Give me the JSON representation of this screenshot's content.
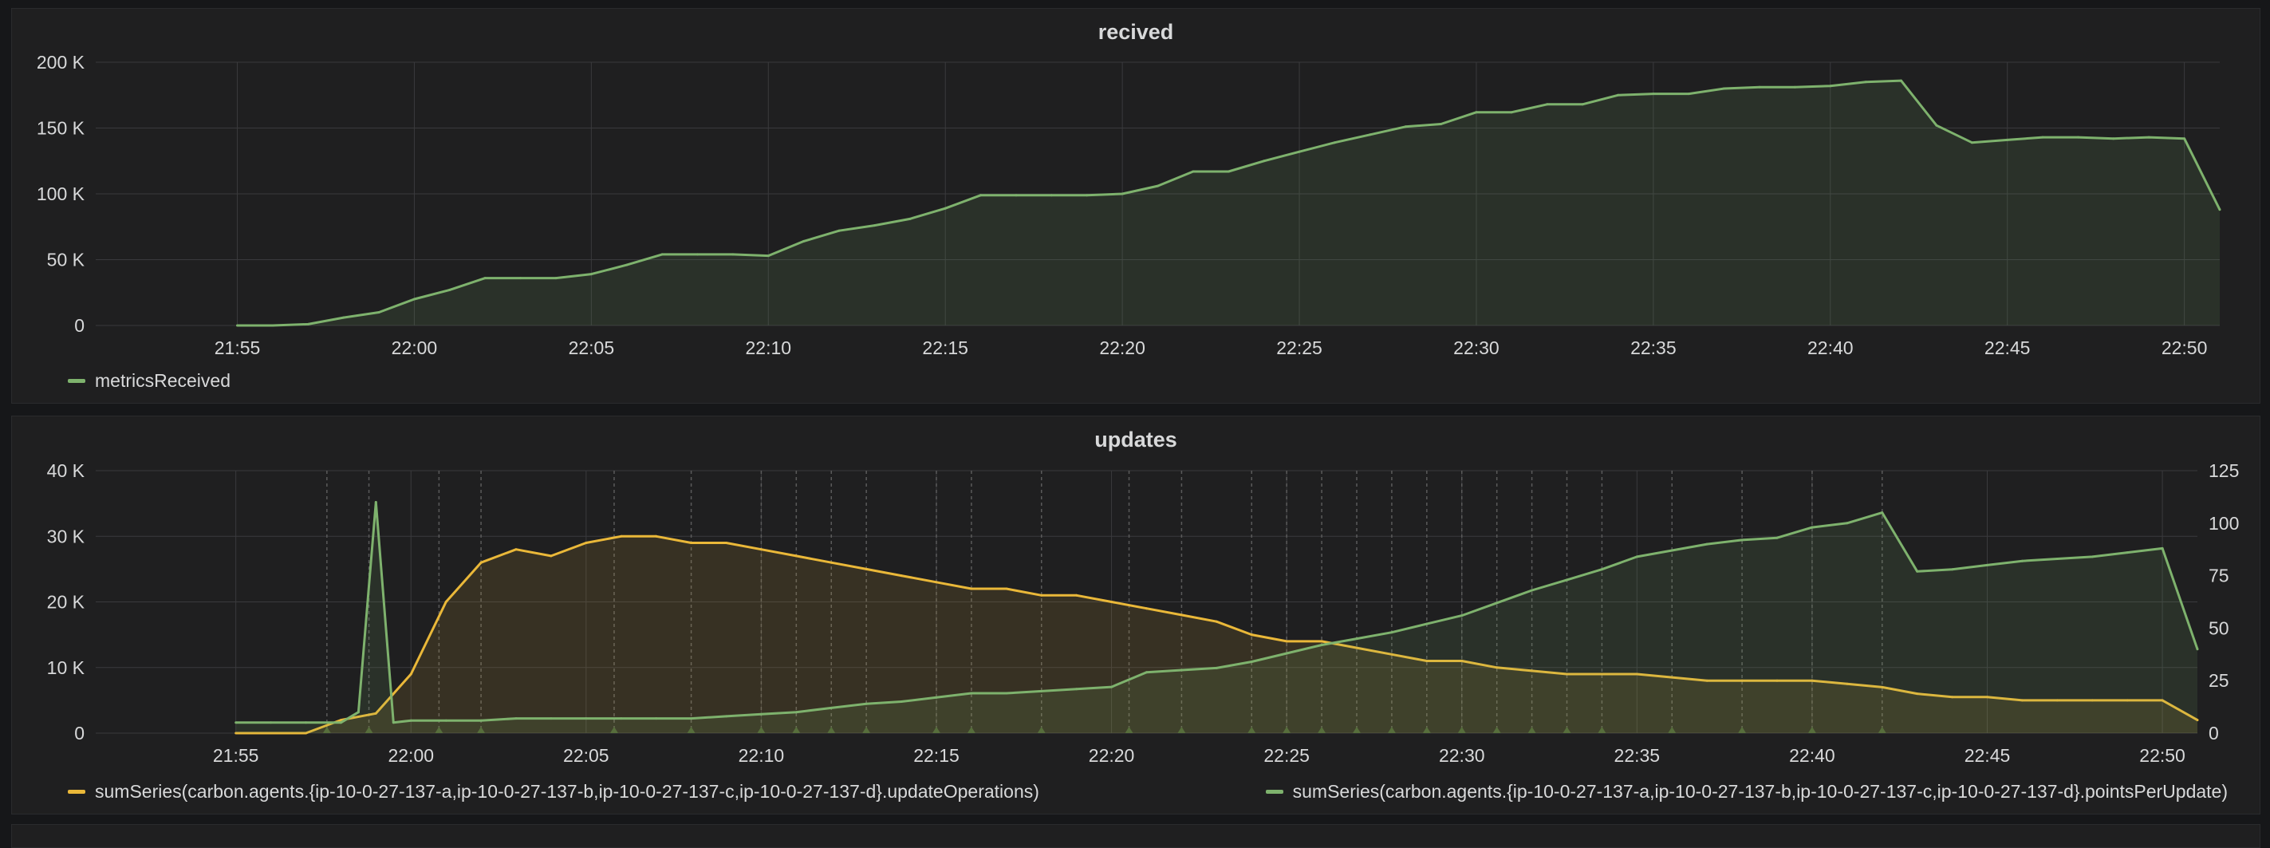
{
  "colors": {
    "green": "#7eb26d",
    "yellow": "#eab839",
    "grid": "#3a3a3d",
    "annotation": "#5a5a5a"
  },
  "x_ticks": [
    "21:55",
    "22:00",
    "22:05",
    "22:10",
    "22:15",
    "22:20",
    "22:25",
    "22:30",
    "22:35",
    "22:40",
    "22:45",
    "22:50"
  ],
  "chart_data": [
    {
      "type": "line",
      "title": "recived",
      "xlabel": "",
      "ylabel": "",
      "x_unit": "minutes",
      "xlim": [
        "21:51",
        "22:51"
      ],
      "ylim": [
        0,
        200000
      ],
      "y_ticks": [
        "0",
        "50 K",
        "100 K",
        "150 K",
        "200 K"
      ],
      "y_tick_values": [
        0,
        50000,
        100000,
        150000,
        200000
      ],
      "grid": true,
      "legend_position": "bottom-left",
      "series": [
        {
          "name": "metricsReceived",
          "color": "#7eb26d",
          "fill": true,
          "x": [
            "21:55",
            "21:56",
            "21:57",
            "21:58",
            "21:59",
            "22:00",
            "22:01",
            "22:02",
            "22:03",
            "22:04",
            "22:05",
            "22:06",
            "22:07",
            "22:08",
            "22:09",
            "22:10",
            "22:11",
            "22:12",
            "22:13",
            "22:14",
            "22:15",
            "22:16",
            "22:17",
            "22:18",
            "22:19",
            "22:20",
            "22:21",
            "22:22",
            "22:23",
            "22:24",
            "22:25",
            "22:26",
            "22:27",
            "22:28",
            "22:29",
            "22:30",
            "22:31",
            "22:32",
            "22:33",
            "22:34",
            "22:35",
            "22:36",
            "22:37",
            "22:38",
            "22:39",
            "22:40",
            "22:41",
            "22:42",
            "22:43",
            "22:44",
            "22:45",
            "22:46",
            "22:47",
            "22:48",
            "22:49",
            "22:50",
            "22:51"
          ],
          "values": [
            0,
            0,
            1000,
            6000,
            10000,
            20000,
            27000,
            36000,
            36000,
            36000,
            39000,
            46000,
            54000,
            54000,
            54000,
            53000,
            64000,
            72000,
            76000,
            81000,
            89000,
            99000,
            99000,
            99000,
            99000,
            100000,
            106000,
            117000,
            117000,
            125000,
            132000,
            139000,
            145000,
            151000,
            153000,
            162000,
            162000,
            168000,
            168000,
            175000,
            176000,
            176000,
            180000,
            181000,
            181000,
            182000,
            185000,
            186000,
            152000,
            139000,
            141000,
            143000,
            143000,
            142000,
            143000,
            142000,
            88000
          ]
        }
      ]
    },
    {
      "type": "line",
      "title": "updates",
      "xlabel": "",
      "ylabel": "",
      "x_unit": "minutes",
      "xlim": [
        "21:51",
        "22:51"
      ],
      "ylim": [
        0,
        40000
      ],
      "y_ticks": [
        "0",
        "10 K",
        "20 K",
        "30 K",
        "40 K"
      ],
      "y_tick_values": [
        0,
        10000,
        20000,
        30000,
        40000
      ],
      "ylim_right": [
        0,
        125
      ],
      "y_ticks_right": [
        "0",
        "25",
        "50",
        "75",
        "100",
        "125"
      ],
      "y_tick_values_right": [
        0,
        25,
        50,
        75,
        100,
        125
      ],
      "grid": true,
      "legend_position": "bottom",
      "series": [
        {
          "name": "sumSeries(carbon.agents.{ip-10-0-27-137-a,ip-10-0-27-137-b,ip-10-0-27-137-c,ip-10-0-27-137-d}.updateOperations)",
          "color": "#eab839",
          "axis": "left",
          "fill": true,
          "x": [
            "21:55",
            "21:56",
            "21:57",
            "21:58",
            "21:59",
            "22:00",
            "22:01",
            "22:02",
            "22:03",
            "22:04",
            "22:05",
            "22:06",
            "22:07",
            "22:08",
            "22:09",
            "22:10",
            "22:11",
            "22:12",
            "22:13",
            "22:14",
            "22:15",
            "22:16",
            "22:17",
            "22:18",
            "22:19",
            "22:20",
            "22:21",
            "22:22",
            "22:23",
            "22:24",
            "22:25",
            "22:26",
            "22:27",
            "22:28",
            "22:29",
            "22:30",
            "22:31",
            "22:32",
            "22:33",
            "22:34",
            "22:35",
            "22:36",
            "22:37",
            "22:38",
            "22:39",
            "22:40",
            "22:41",
            "22:42",
            "22:43",
            "22:44",
            "22:45",
            "22:46",
            "22:47",
            "22:48",
            "22:49",
            "22:50",
            "22:51"
          ],
          "values": [
            0,
            0,
            0,
            2000,
            3000,
            9000,
            20000,
            26000,
            28000,
            27000,
            29000,
            30000,
            30000,
            29000,
            29000,
            28000,
            27000,
            26000,
            25000,
            24000,
            23000,
            22000,
            22000,
            21000,
            21000,
            20000,
            19000,
            18000,
            17000,
            15000,
            14000,
            14000,
            13000,
            12000,
            11000,
            11000,
            10000,
            9500,
            9000,
            9000,
            9000,
            8500,
            8000,
            8000,
            8000,
            8000,
            7500,
            7000,
            6000,
            5500,
            5500,
            5000,
            5000,
            5000,
            5000,
            5000,
            2000
          ]
        },
        {
          "name": "sumSeries(carbon.agents.{ip-10-0-27-137-a,ip-10-0-27-137-b,ip-10-0-27-137-c,ip-10-0-27-137-d}.pointsPerUpdate)",
          "color": "#7eb26d",
          "axis": "right",
          "fill": true,
          "x": [
            "21:55",
            "21:56",
            "21:57",
            "21:58",
            "21:58.5",
            "21:59",
            "21:59.5",
            "22:00",
            "22:01",
            "22:02",
            "22:03",
            "22:04",
            "22:05",
            "22:06",
            "22:07",
            "22:08",
            "22:09",
            "22:10",
            "22:11",
            "22:12",
            "22:13",
            "22:14",
            "22:15",
            "22:16",
            "22:17",
            "22:18",
            "22:19",
            "22:20",
            "22:21",
            "22:22",
            "22:23",
            "22:24",
            "22:25",
            "22:26",
            "22:27",
            "22:28",
            "22:29",
            "22:30",
            "22:31",
            "22:32",
            "22:33",
            "22:34",
            "22:35",
            "22:36",
            "22:37",
            "22:38",
            "22:39",
            "22:40",
            "22:41",
            "22:42",
            "22:43",
            "22:44",
            "22:45",
            "22:46",
            "22:47",
            "22:48",
            "22:49",
            "22:50",
            "22:51"
          ],
          "values": [
            5,
            5,
            5,
            5,
            10,
            110,
            5,
            6,
            6,
            6,
            7,
            7,
            7,
            7,
            7,
            7,
            8,
            9,
            10,
            12,
            14,
            15,
            17,
            19,
            19,
            20,
            21,
            22,
            29,
            30,
            31,
            34,
            38,
            42,
            45,
            48,
            52,
            56,
            62,
            68,
            73,
            78,
            84,
            87,
            90,
            92,
            93,
            98,
            100,
            105,
            77,
            78,
            80,
            82,
            83,
            84,
            86,
            88,
            40
          ]
        }
      ],
      "annotations_x": [
        "21:57.6",
        "21:58.8",
        "22:00.8",
        "22:02",
        "22:05.8",
        "22:08",
        "22:10",
        "22:11",
        "22:12",
        "22:13",
        "22:15",
        "22:16",
        "22:18",
        "22:20.5",
        "22:22",
        "22:24",
        "22:25",
        "22:26",
        "22:27",
        "22:28",
        "22:29",
        "22:30",
        "22:31",
        "22:32",
        "22:33",
        "22:34",
        "22:36",
        "22:38",
        "22:40",
        "22:42"
      ]
    }
  ]
}
